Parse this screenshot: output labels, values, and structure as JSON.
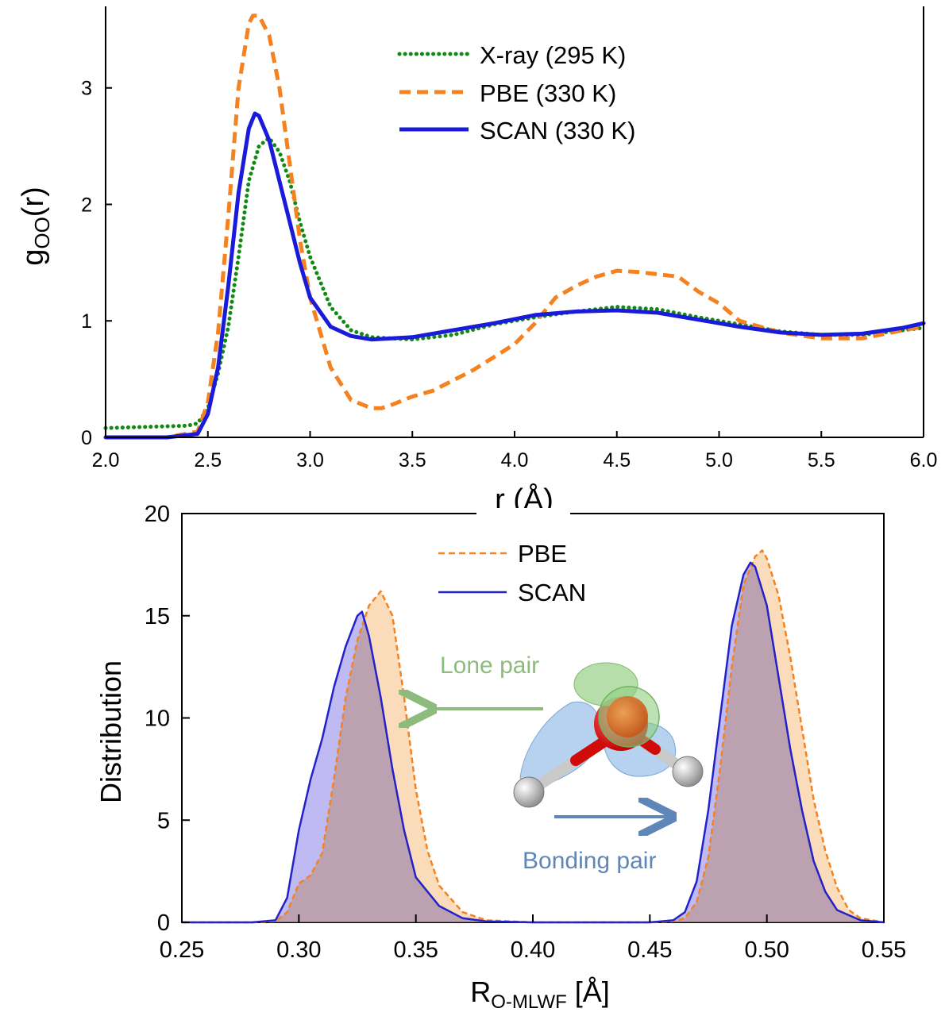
{
  "chart_data": [
    {
      "type": "line",
      "xlabel": "r (Å)",
      "ylabel": "g",
      "ylabel_subscript": "OO",
      "ylabel_suffix": "(r)",
      "xlim": [
        2.0,
        6.0
      ],
      "ylim": [
        0,
        3.7
      ],
      "xticks": [
        "2.0",
        "2.5",
        "3.0",
        "3.5",
        "4.0",
        "4.5",
        "5.0",
        "5.5",
        "6.0"
      ],
      "yticks": [
        "0",
        "1",
        "2",
        "3"
      ],
      "grid": false,
      "legend_position": "top-center",
      "series": [
        {
          "name": "X-ray (295 K)",
          "color": "#118a11",
          "style": "dotted",
          "x": [
            2.0,
            2.2,
            2.4,
            2.45,
            2.5,
            2.55,
            2.6,
            2.65,
            2.7,
            2.75,
            2.8,
            2.85,
            2.9,
            2.95,
            3.0,
            3.1,
            3.2,
            3.3,
            3.4,
            3.5,
            3.7,
            3.9,
            4.1,
            4.3,
            4.5,
            4.7,
            4.9,
            5.1,
            5.3,
            5.5,
            5.7,
            5.9,
            6.0
          ],
          "values": [
            0.08,
            0.09,
            0.1,
            0.12,
            0.25,
            0.55,
            0.95,
            1.55,
            2.2,
            2.5,
            2.57,
            2.45,
            2.2,
            1.85,
            1.55,
            1.12,
            0.92,
            0.86,
            0.85,
            0.84,
            0.88,
            0.97,
            1.03,
            1.08,
            1.12,
            1.1,
            1.03,
            0.97,
            0.91,
            0.88,
            0.88,
            0.92,
            0.94
          ]
        },
        {
          "name": "PBE (330 K)",
          "color": "#f58220",
          "style": "dashed",
          "x": [
            2.0,
            2.3,
            2.45,
            2.5,
            2.55,
            2.6,
            2.65,
            2.7,
            2.72,
            2.75,
            2.8,
            2.85,
            2.9,
            2.95,
            3.0,
            3.1,
            3.2,
            3.3,
            3.35,
            3.4,
            3.5,
            3.6,
            3.8,
            4.0,
            4.1,
            4.2,
            4.3,
            4.4,
            4.5,
            4.6,
            4.8,
            4.9,
            5.0,
            5.1,
            5.3,
            5.5,
            5.7,
            5.9,
            6.0
          ],
          "values": [
            0.0,
            0.0,
            0.05,
            0.3,
            0.9,
            1.9,
            3.0,
            3.55,
            3.62,
            3.62,
            3.45,
            3.0,
            2.35,
            1.7,
            1.2,
            0.6,
            0.32,
            0.25,
            0.25,
            0.28,
            0.35,
            0.4,
            0.58,
            0.8,
            0.98,
            1.2,
            1.3,
            1.38,
            1.43,
            1.42,
            1.38,
            1.25,
            1.15,
            1.0,
            0.9,
            0.85,
            0.85,
            0.92,
            0.95
          ]
        },
        {
          "name": "SCAN (330 K)",
          "color": "#1a1adb",
          "style": "solid",
          "x": [
            2.0,
            2.3,
            2.45,
            2.5,
            2.55,
            2.6,
            2.65,
            2.7,
            2.73,
            2.75,
            2.8,
            2.85,
            2.9,
            2.95,
            3.0,
            3.1,
            3.2,
            3.3,
            3.4,
            3.5,
            3.7,
            3.9,
            4.1,
            4.3,
            4.5,
            4.7,
            4.9,
            5.1,
            5.3,
            5.5,
            5.7,
            5.9,
            6.0
          ],
          "values": [
            0.0,
            0.0,
            0.03,
            0.2,
            0.6,
            1.3,
            2.1,
            2.65,
            2.78,
            2.76,
            2.55,
            2.2,
            1.85,
            1.5,
            1.2,
            0.95,
            0.87,
            0.84,
            0.85,
            0.86,
            0.92,
            0.98,
            1.05,
            1.08,
            1.09,
            1.07,
            1.01,
            0.95,
            0.9,
            0.88,
            0.89,
            0.94,
            0.98
          ]
        }
      ]
    },
    {
      "type": "area",
      "xlabel": "R",
      "xlabel_subscript": "O-MLWF",
      "xlabel_suffix": " [Å]",
      "ylabel": "Distribution",
      "xlim": [
        0.25,
        0.55
      ],
      "ylim": [
        0,
        20
      ],
      "xticks": [
        "0.25",
        "0.30",
        "0.35",
        "0.40",
        "0.45",
        "0.50",
        "0.55"
      ],
      "yticks": [
        "0",
        "5",
        "10",
        "15",
        "20"
      ],
      "grid": false,
      "legend_position": "top-center",
      "series": [
        {
          "name": "PBE",
          "color": "#f58220",
          "fill": "#f9c48c",
          "style": "dashed",
          "x": [
            0.25,
            0.28,
            0.29,
            0.295,
            0.3,
            0.305,
            0.31,
            0.315,
            0.32,
            0.325,
            0.33,
            0.335,
            0.34,
            0.345,
            0.35,
            0.355,
            0.36,
            0.37,
            0.38,
            0.4,
            0.45,
            0.46,
            0.465,
            0.47,
            0.475,
            0.48,
            0.485,
            0.49,
            0.495,
            0.498,
            0.5,
            0.505,
            0.51,
            0.515,
            0.52,
            0.525,
            0.53,
            0.535,
            0.54,
            0.55
          ],
          "values": [
            0,
            0,
            0.05,
            0.5,
            1.9,
            2.3,
            3.4,
            7.0,
            11.0,
            13.8,
            15.5,
            16.2,
            15.0,
            11.0,
            6.5,
            3.5,
            1.8,
            0.5,
            0.1,
            0,
            0,
            0.05,
            0.2,
            1.0,
            3.2,
            7.5,
            12.5,
            16.5,
            17.9,
            18.2,
            17.8,
            16.0,
            13.0,
            9.5,
            6.0,
            3.5,
            1.7,
            0.6,
            0.2,
            0
          ]
        },
        {
          "name": "SCAN",
          "color": "#2222c8",
          "fill": "#aaa4ee",
          "style": "solid",
          "x": [
            0.25,
            0.28,
            0.29,
            0.295,
            0.3,
            0.305,
            0.31,
            0.315,
            0.32,
            0.325,
            0.327,
            0.33,
            0.335,
            0.34,
            0.345,
            0.35,
            0.36,
            0.37,
            0.38,
            0.4,
            0.45,
            0.46,
            0.465,
            0.47,
            0.475,
            0.48,
            0.485,
            0.49,
            0.493,
            0.495,
            0.5,
            0.505,
            0.51,
            0.515,
            0.52,
            0.525,
            0.53,
            0.54,
            0.55
          ],
          "values": [
            0,
            0,
            0.1,
            1.2,
            4.5,
            7.0,
            9.0,
            11.5,
            13.5,
            15.0,
            15.2,
            14.0,
            11.0,
            7.5,
            4.5,
            2.2,
            0.8,
            0.2,
            0.05,
            0,
            0,
            0.1,
            0.5,
            2.0,
            5.5,
            10.0,
            14.5,
            17.0,
            17.6,
            17.4,
            15.5,
            12.0,
            8.5,
            5.5,
            3.0,
            1.5,
            0.6,
            0.1,
            0
          ]
        }
      ],
      "annotations": {
        "lone_pair": "Lone pair",
        "bonding_pair": "Bonding pair",
        "lone_pair_color": "#8dbb7d",
        "bonding_pair_color": "#5f86b8"
      }
    }
  ]
}
